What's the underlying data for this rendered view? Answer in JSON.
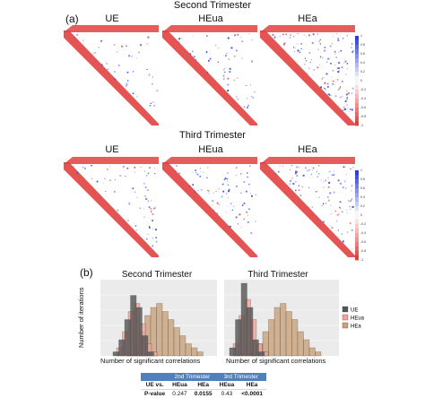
{
  "panel_a": {
    "letter": "(a)",
    "second_title": "Second Trimester",
    "third_title": "Third Trimester",
    "groups": [
      "UE",
      "HEua",
      "HEa"
    ],
    "colorbar_ticks": [
      "1",
      "0.8",
      "0.6",
      "0.4",
      "0.2",
      "0",
      "-0.2",
      "-0.4",
      "-0.6",
      "-0.8",
      "-1"
    ],
    "colors": {
      "positive": "#2a3fd6",
      "negative": "#e0413f"
    }
  },
  "panel_b": {
    "letter": "(b)",
    "chart_data": [
      {
        "type": "histogram",
        "title": "Second Trimester",
        "xlabel": "Number of significant correlations",
        "ylabel": "Number of iterations",
        "series": [
          {
            "name": "UE",
            "color": "#555555",
            "values": [
              1,
              4,
              9,
              15,
              12,
              5,
              1
            ]
          },
          {
            "name": "HEua",
            "color": "#f0a39b",
            "values": [
              2,
              6,
              11,
              13,
              8,
              3,
              1
            ]
          },
          {
            "name": "HEa",
            "color": "#c9a27a",
            "values": [
              1,
              3,
              6,
              10,
              12,
              13,
              11,
              9,
              7,
              5,
              3,
              2,
              1
            ]
          }
        ]
      },
      {
        "type": "histogram",
        "title": "Third Trimester",
        "xlabel": "Number of significant correlations",
        "ylabel": "Number of iterations",
        "series": [
          {
            "name": "UE",
            "color": "#555555",
            "values": [
              2,
              9,
              18,
              12,
              4,
              1
            ]
          },
          {
            "name": "HEua",
            "color": "#f0a39b",
            "values": [
              3,
              10,
              14,
              9,
              3,
              1
            ]
          },
          {
            "name": "HEa",
            "color": "#c9a27a",
            "values": [
              1,
              3,
              6,
              9,
              12,
              13,
              11,
              9,
              6,
              4,
              2,
              1
            ]
          }
        ]
      }
    ],
    "legend": [
      "UE",
      "HEua",
      "HEa"
    ]
  },
  "table": {
    "headers": [
      "",
      "2nd Trimester",
      "",
      "3rd Trimester",
      ""
    ],
    "subheaders": [
      "UE vs.",
      "HEua",
      "HEa",
      "HEua",
      "HEa"
    ],
    "rows": [
      [
        "P-value",
        "0.247",
        "0.0155",
        "0.43",
        "<0.0001"
      ]
    ]
  }
}
